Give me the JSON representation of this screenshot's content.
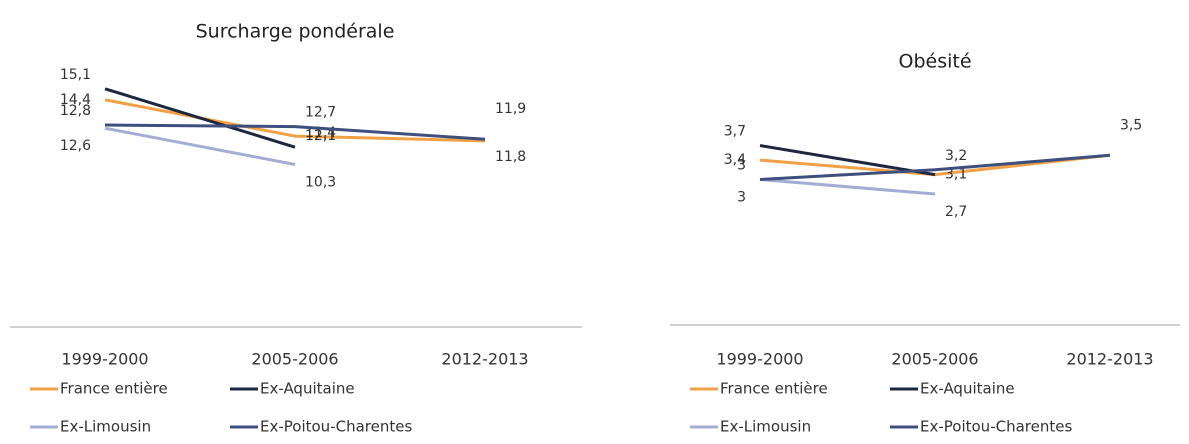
{
  "chart_data": [
    {
      "type": "line",
      "title": "Surcharge pondérale",
      "categories": [
        "1999-2000",
        "2005-2006",
        "2012-2013"
      ],
      "ylim": [
        0,
        18
      ],
      "series": [
        {
          "name": "France entière",
          "color": "#f2a045",
          "values": [
            14.4,
            12.1,
            11.8
          ],
          "value_labels": [
            "14,4",
            "12,1",
            "11,8"
          ]
        },
        {
          "name": "Ex-Aquitaine",
          "color": "#1e2740",
          "values": [
            15.1,
            11.4,
            null
          ],
          "value_labels": [
            "15,1",
            "11,4",
            null
          ]
        },
        {
          "name": "Ex-Limousin",
          "color": "#a3acd2",
          "values": [
            12.6,
            10.3,
            null
          ],
          "value_labels": [
            "12,6",
            "10,3",
            null
          ]
        },
        {
          "name": "Ex-Poitou-Charentes",
          "color": "#3d4f7c",
          "values": [
            12.8,
            12.7,
            11.9
          ],
          "value_labels": [
            "12,8",
            "12,7",
            "11,9"
          ]
        }
      ]
    },
    {
      "type": "line",
      "title": "Obésité",
      "categories": [
        "1999-2000",
        "2005-2006",
        "2012-2013"
      ],
      "ylim": [
        0,
        4
      ],
      "series": [
        {
          "name": "France entière",
          "color": "#f2a045",
          "values": [
            3.4,
            3.1,
            3.5
          ],
          "value_labels": [
            "3,4",
            "3,1",
            null
          ]
        },
        {
          "name": "Ex-Aquitaine",
          "color": "#1e2740",
          "values": [
            3.7,
            3.1,
            null
          ],
          "value_labels": [
            "3,7",
            null,
            null
          ]
        },
        {
          "name": "Ex-Limousin",
          "color": "#a3acd2",
          "values": [
            3,
            2.7,
            null
          ],
          "value_labels": [
            "3",
            "2,7",
            null
          ]
        },
        {
          "name": "Ex-Poitou-Charentes",
          "color": "#3d4f7c",
          "values": [
            3,
            3.2,
            3.5
          ],
          "value_labels": [
            "3",
            "3,2",
            "3,5"
          ]
        }
      ]
    }
  ]
}
